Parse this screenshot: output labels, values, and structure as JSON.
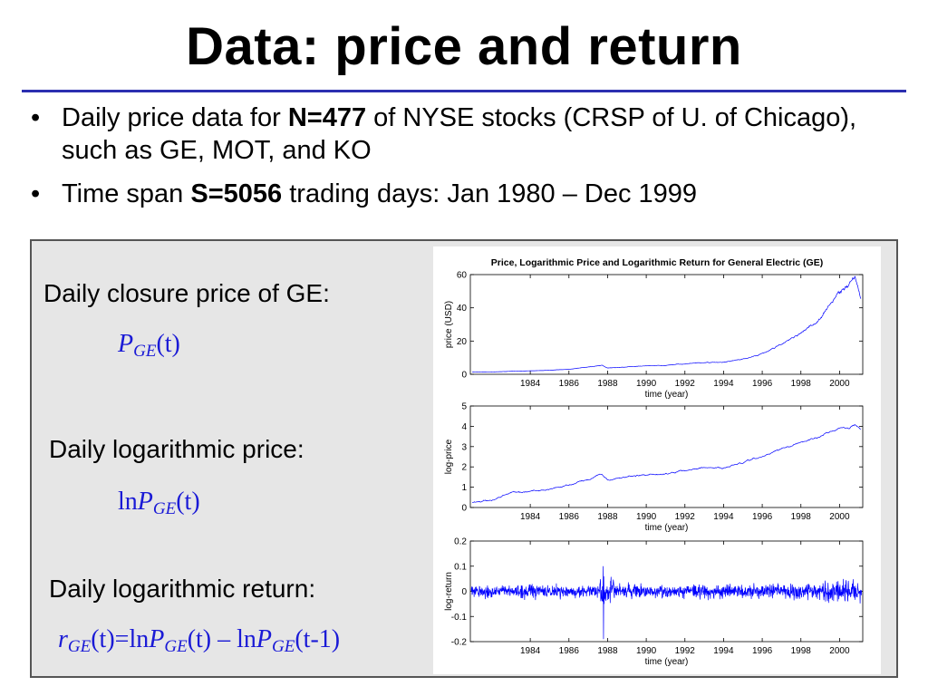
{
  "title": "Data: price and return",
  "bullets": [
    {
      "pre": "Daily price data for ",
      "bold": "N=477",
      "post": " of NYSE stocks (CRSP of U. of Chicago), such as GE, MOT, and KO"
    },
    {
      "pre": "Time span ",
      "bold": "S=5056",
      "post": " trading days: Jan 1980 – Dec 1999"
    }
  ],
  "bullet_char": "•",
  "definitions": {
    "price_label": "Daily closure price of GE:",
    "logprice_label": "Daily logarithmic price:",
    "logreturn_label": "Daily logarithmic return:",
    "f_price": {
      "P": "P",
      "GE": "GE",
      "t": "(t)"
    },
    "f_logprice": {
      "ln": "ln",
      "P": "P",
      "GE": "GE",
      "t": "(t)"
    },
    "f_logreturn": {
      "r": "r",
      "GE": "GE",
      "t": "(t)",
      "eq": "=ln",
      "P": "P",
      "minus": " – ln",
      "tm1": "(t-1)"
    }
  },
  "colors": {
    "series": "#0000ff",
    "accent_rule": "#2b2fb0",
    "formula": "#1a1ad6"
  },
  "chart_data": [
    {
      "type": "line",
      "title": "Price, Logarithmic Price and Logarithmic Return for General Electric (GE)",
      "xlabel": "time (year)",
      "ylabel": "price (USD)",
      "xlim": [
        1980.9,
        2001.2
      ],
      "ylim": [
        0,
        60
      ],
      "yticks": [
        0,
        20,
        40,
        60
      ],
      "xticks": [
        1984,
        1986,
        1988,
        1990,
        1992,
        1994,
        1996,
        1998,
        2000
      ],
      "series": [
        {
          "x": [
            1981,
            1982,
            1983,
            1984,
            1985,
            1986,
            1987,
            1987.7,
            1988,
            1989,
            1990,
            1991,
            1992,
            1993,
            1994,
            1995,
            1996,
            1997,
            1998,
            1999,
            1999.5,
            2000,
            2000.5,
            2000.8,
            2001.1
          ],
          "values": [
            1.3,
            1.4,
            1.8,
            2.1,
            2.4,
            3.0,
            4.4,
            5.3,
            3.8,
            4.4,
            5.1,
            5.3,
            6.3,
            7.0,
            7.2,
            9.0,
            12.5,
            18.0,
            25.0,
            33.0,
            42.0,
            50.0,
            54.0,
            58.0,
            46.0
          ]
        }
      ],
      "grid": false
    },
    {
      "type": "line",
      "xlabel": "time (year)",
      "ylabel": "log-price",
      "xlim": [
        1980.9,
        2001.2
      ],
      "ylim": [
        0,
        5
      ],
      "yticks": [
        0,
        1,
        2,
        3,
        4,
        5
      ],
      "xticks": [
        1984,
        1986,
        1988,
        1990,
        1992,
        1994,
        1996,
        1998,
        2000
      ],
      "series": [
        {
          "x": [
            1981,
            1982,
            1983,
            1984,
            1985,
            1986,
            1987,
            1987.7,
            1988,
            1989,
            1990,
            1991,
            1992,
            1993,
            1994,
            1995,
            1996,
            1997,
            1998,
            1999,
            1999.5,
            2000,
            2000.5,
            2000.8,
            2001.1
          ],
          "values": [
            0.25,
            0.35,
            0.75,
            0.8,
            0.9,
            1.1,
            1.4,
            1.65,
            1.35,
            1.5,
            1.6,
            1.65,
            1.85,
            1.95,
            1.95,
            2.2,
            2.5,
            2.9,
            3.2,
            3.5,
            3.75,
            3.9,
            3.95,
            4.1,
            3.85
          ]
        }
      ],
      "grid": false
    },
    {
      "type": "line",
      "xlabel": "time (year)",
      "ylabel": "log-return",
      "xlim": [
        1980.9,
        2001.2
      ],
      "ylim": [
        -0.2,
        0.2
      ],
      "yticks": [
        -0.2,
        -0.1,
        0,
        0.1,
        0.2
      ],
      "ytick_labels": [
        "-0.2",
        "-0.1",
        "0",
        "0.1",
        "0.2"
      ],
      "xticks": [
        1984,
        1986,
        1988,
        1990,
        1992,
        1994,
        1996,
        1998,
        2000
      ],
      "series": [
        {
          "x": [
            1987.78,
            1987.79,
            1987.8,
            1987.82
          ],
          "values": [
            0.1,
            -0.19,
            0.06,
            -0.05
          ]
        }
      ],
      "grid": false
    }
  ]
}
